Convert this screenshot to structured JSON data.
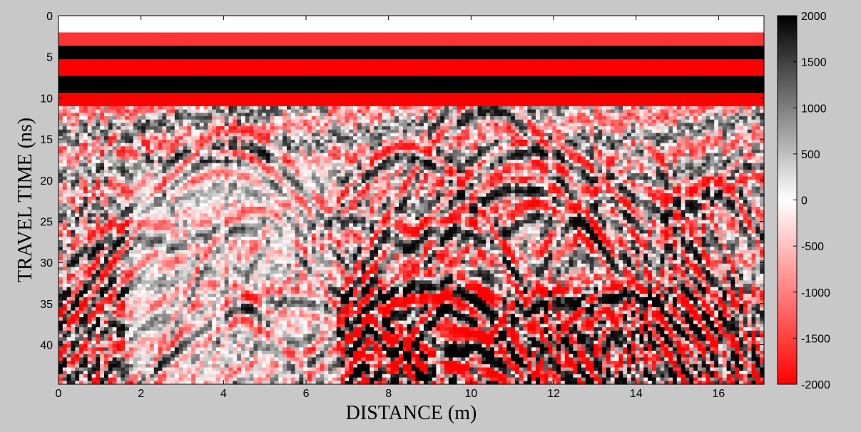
{
  "chart_data": {
    "type": "heatmap",
    "title": "",
    "xlabel": "DISTANCE (m)",
    "ylabel": "TRAVEL TIME (ns)",
    "xlim": [
      0,
      17.1
    ],
    "ylim": [
      0,
      44.8
    ],
    "xticks": [
      0,
      2,
      4,
      6,
      8,
      10,
      12,
      14,
      16
    ],
    "yticks": [
      0,
      5,
      10,
      15,
      20,
      25,
      30,
      35,
      40
    ],
    "y_reversed": true,
    "colorbar": {
      "min": -2000,
      "max": 2000,
      "ticks": [
        2000,
        1500,
        1000,
        500,
        0,
        -500,
        -1000,
        -1500,
        -2000
      ],
      "colormap": [
        "#ff0000",
        "#ffffff",
        "#000000"
      ]
    },
    "grid": false,
    "description_bands": [
      {
        "t_start": 0,
        "t_end": 2.2,
        "amplitude": 0
      },
      {
        "t_start": 2.2,
        "t_end": 3.6,
        "amplitude": -1600
      },
      {
        "t_start": 3.6,
        "t_end": 5.3,
        "amplitude": 2000
      },
      {
        "t_start": 5.3,
        "t_end": 7.3,
        "amplitude": -2000
      },
      {
        "t_start": 7.3,
        "t_end": 9.3,
        "amplitude": 2000
      },
      {
        "t_start": 9.3,
        "t_end": 11.0,
        "amplitude": -2000
      }
    ]
  },
  "colors": {
    "background": "#c8c8c8",
    "negative": "#ff0000",
    "zero": "#ffffff",
    "positive": "#000000"
  }
}
